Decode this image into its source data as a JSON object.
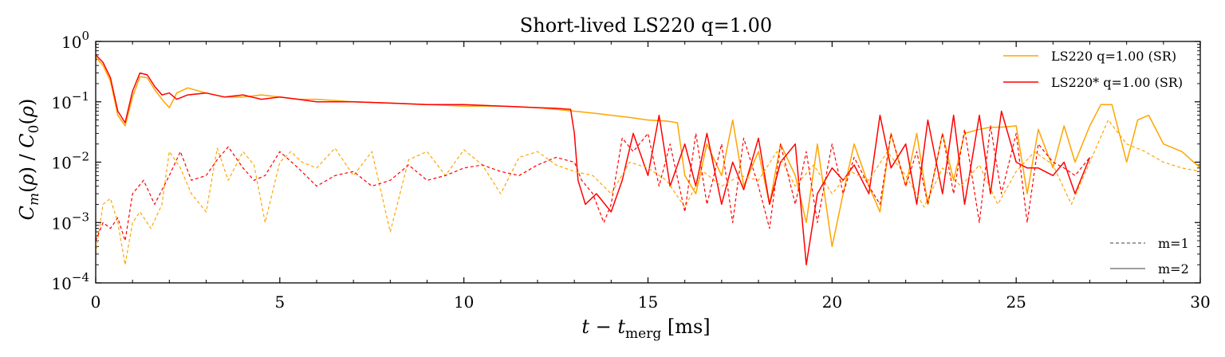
{
  "chart_data": {
    "type": "line",
    "title": "Short-lived LS220 q=1.00",
    "xlabel": "t − t_merg [ms]",
    "ylabel": "C_m(ρ) / C_0(ρ)",
    "xlim": [
      0,
      30
    ],
    "ylim": [
      0.0001,
      1
    ],
    "yscale": "log",
    "xticks": [
      0,
      5,
      10,
      15,
      20,
      25,
      30
    ],
    "yticks": [
      {
        "value": 0.0001,
        "exp": "−4"
      },
      {
        "value": 0.001,
        "exp": "−3"
      },
      {
        "value": 0.01,
        "exp": "−2"
      },
      {
        "value": 0.1,
        "exp": "−1"
      },
      {
        "value": 1,
        "exp": "0"
      }
    ],
    "legend_placement": "top-right",
    "legend_style_placement": "bottom-right",
    "grid": false,
    "series": [
      {
        "name": "LS220 q=1.00 (SR)",
        "color": "#ffa500",
        "m": 2,
        "x": [
          0,
          0.2,
          0.4,
          0.6,
          0.8,
          1.0,
          1.2,
          1.4,
          1.6,
          1.8,
          2.0,
          2.2,
          2.5,
          3.0,
          3.5,
          4.0,
          4.5,
          5.0,
          5.5,
          6.0,
          7.0,
          8.0,
          9.0,
          10.0,
          11.0,
          12.0,
          12.5,
          13.0,
          13.5,
          14.0,
          14.5,
          15.0,
          15.5,
          15.8,
          16.0,
          16.3,
          16.6,
          17.0,
          17.3,
          17.6,
          18.0,
          18.3,
          18.6,
          19.0,
          19.3,
          19.6,
          20.0,
          20.3,
          20.6,
          21.0,
          21.3,
          21.6,
          22.0,
          22.3,
          22.6,
          23.0,
          23.3,
          23.6,
          24.0,
          24.3,
          24.6,
          25.0,
          25.3,
          25.6,
          26.0,
          26.3,
          26.6,
          27.0,
          27.3,
          27.6,
          28.0,
          28.3,
          28.6,
          29.0,
          29.5,
          30.0
        ],
        "y": [
          0.55,
          0.4,
          0.22,
          0.06,
          0.04,
          0.12,
          0.26,
          0.25,
          0.16,
          0.11,
          0.08,
          0.14,
          0.17,
          0.14,
          0.12,
          0.12,
          0.13,
          0.12,
          0.11,
          0.11,
          0.1,
          0.095,
          0.09,
          0.085,
          0.085,
          0.08,
          0.075,
          0.07,
          0.065,
          0.06,
          0.055,
          0.05,
          0.048,
          0.045,
          0.006,
          0.003,
          0.02,
          0.006,
          0.05,
          0.004,
          0.015,
          0.002,
          0.02,
          0.006,
          0.001,
          0.02,
          0.0004,
          0.003,
          0.02,
          0.004,
          0.0015,
          0.03,
          0.004,
          0.03,
          0.002,
          0.03,
          0.005,
          0.03,
          0.035,
          0.038,
          0.038,
          0.04,
          0.003,
          0.035,
          0.008,
          0.04,
          0.01,
          0.04,
          0.09,
          0.09,
          0.01,
          0.05,
          0.06,
          0.02,
          0.015,
          0.008
        ]
      },
      {
        "name": "LS220* q=1.00 (SR)",
        "color": "#ff0000",
        "m": 2,
        "x": [
          0,
          0.2,
          0.4,
          0.6,
          0.8,
          1.0,
          1.2,
          1.4,
          1.6,
          1.8,
          2.0,
          2.2,
          2.5,
          3.0,
          3.5,
          4.0,
          4.5,
          5.0,
          5.5,
          6.0,
          7.0,
          8.0,
          9.0,
          10.0,
          11.0,
          12.0,
          12.5,
          12.9,
          13.0,
          13.1,
          13.3,
          13.6,
          14.0,
          14.3,
          14.6,
          15.0,
          15.3,
          15.6,
          16.0,
          16.3,
          16.6,
          17.0,
          17.3,
          17.6,
          18.0,
          18.3,
          18.6,
          19.0,
          19.3,
          19.6,
          20.0,
          20.3,
          20.6,
          21.0,
          21.3,
          21.6,
          22.0,
          22.3,
          22.6,
          23.0,
          23.3,
          23.6,
          24.0,
          24.3,
          24.6,
          25.0,
          25.3,
          25.6,
          26.0,
          26.3,
          26.6,
          27.0
        ],
        "y": [
          0.6,
          0.45,
          0.25,
          0.07,
          0.045,
          0.15,
          0.3,
          0.28,
          0.18,
          0.13,
          0.14,
          0.11,
          0.13,
          0.14,
          0.12,
          0.13,
          0.11,
          0.12,
          0.11,
          0.1,
          0.1,
          0.095,
          0.09,
          0.09,
          0.085,
          0.08,
          0.078,
          0.075,
          0.03,
          0.005,
          0.002,
          0.003,
          0.0015,
          0.005,
          0.03,
          0.006,
          0.06,
          0.004,
          0.02,
          0.004,
          0.03,
          0.002,
          0.01,
          0.0035,
          0.025,
          0.002,
          0.01,
          0.02,
          0.0002,
          0.003,
          0.008,
          0.005,
          0.009,
          0.003,
          0.06,
          0.008,
          0.02,
          0.002,
          0.05,
          0.003,
          0.06,
          0.002,
          0.06,
          0.003,
          0.07,
          0.01,
          0.008,
          0.008,
          0.006,
          0.01,
          0.003,
          0.012
        ]
      },
      {
        "name": "LS220 q=1.00 (SR)",
        "color": "#ffa500",
        "m": 1,
        "x": [
          0,
          0.2,
          0.4,
          0.6,
          0.8,
          1.0,
          1.2,
          1.5,
          1.8,
          2.0,
          2.3,
          2.6,
          3.0,
          3.3,
          3.6,
          4.0,
          4.3,
          4.6,
          5.0,
          5.3,
          5.6,
          6.0,
          6.5,
          7.0,
          7.5,
          8.0,
          8.5,
          9.0,
          9.5,
          10.0,
          10.5,
          11.0,
          11.5,
          12.0,
          12.5,
          13.0,
          13.5,
          14.0,
          14.5,
          15.0,
          15.5,
          16.0,
          16.5,
          17.0,
          17.5,
          18.0,
          18.5,
          19.0,
          19.5,
          20.0,
          20.5,
          21.0,
          21.5,
          22.0,
          22.5,
          23.0,
          23.5,
          24.0,
          24.5,
          25.0,
          25.5,
          26.0,
          26.5,
          27.0,
          27.5,
          28.0,
          28.5,
          29.0,
          29.5,
          30.0
        ],
        "y": [
          0.0003,
          0.002,
          0.0025,
          0.001,
          0.0002,
          0.001,
          0.0015,
          0.0008,
          0.002,
          0.015,
          0.008,
          0.003,
          0.0015,
          0.017,
          0.005,
          0.015,
          0.009,
          0.001,
          0.01,
          0.015,
          0.01,
          0.008,
          0.017,
          0.006,
          0.015,
          0.0007,
          0.011,
          0.015,
          0.006,
          0.016,
          0.009,
          0.003,
          0.012,
          0.015,
          0.009,
          0.007,
          0.006,
          0.003,
          0.01,
          0.008,
          0.005,
          0.0018,
          0.007,
          0.004,
          0.006,
          0.005,
          0.015,
          0.004,
          0.009,
          0.003,
          0.007,
          0.005,
          0.015,
          0.006,
          0.0018,
          0.008,
          0.004,
          0.009,
          0.002,
          0.007,
          0.015,
          0.009,
          0.002,
          0.01,
          0.05,
          0.02,
          0.015,
          0.01,
          0.008,
          0.007
        ]
      },
      {
        "name": "LS220* q=1.00 (SR)",
        "color": "#ff0000",
        "m": 1,
        "x": [
          0,
          0.2,
          0.4,
          0.6,
          0.8,
          1.0,
          1.3,
          1.6,
          2.0,
          2.3,
          2.6,
          3.0,
          3.3,
          3.6,
          4.0,
          4.3,
          4.6,
          5.0,
          5.5,
          6.0,
          6.5,
          7.0,
          7.5,
          8.0,
          8.5,
          9.0,
          9.5,
          10.0,
          10.5,
          11.0,
          11.5,
          12.0,
          12.5,
          13.0,
          13.2,
          13.5,
          13.8,
          14.0,
          14.3,
          14.6,
          15.0,
          15.3,
          15.6,
          16.0,
          16.3,
          16.6,
          17.0,
          17.3,
          17.6,
          18.0,
          18.3,
          18.6,
          19.0,
          19.3,
          19.6,
          20.0,
          20.3,
          20.6,
          21.0,
          21.3,
          21.6,
          22.0,
          22.3,
          22.6,
          23.0,
          23.3,
          23.6,
          24.0,
          24.3,
          24.6,
          25.0,
          25.3,
          25.6,
          26.0,
          26.3,
          26.6,
          27.0
        ],
        "y": [
          0.0005,
          0.001,
          0.0008,
          0.0012,
          0.0005,
          0.003,
          0.005,
          0.002,
          0.006,
          0.015,
          0.005,
          0.006,
          0.011,
          0.018,
          0.008,
          0.005,
          0.006,
          0.015,
          0.008,
          0.004,
          0.006,
          0.007,
          0.004,
          0.005,
          0.009,
          0.005,
          0.006,
          0.008,
          0.009,
          0.007,
          0.006,
          0.009,
          0.012,
          0.01,
          0.005,
          0.003,
          0.001,
          0.002,
          0.025,
          0.015,
          0.03,
          0.004,
          0.02,
          0.0015,
          0.03,
          0.002,
          0.02,
          0.001,
          0.025,
          0.004,
          0.0008,
          0.02,
          0.002,
          0.015,
          0.001,
          0.02,
          0.003,
          0.012,
          0.004,
          0.002,
          0.03,
          0.004,
          0.015,
          0.002,
          0.03,
          0.003,
          0.035,
          0.001,
          0.04,
          0.003,
          0.03,
          0.001,
          0.02,
          0.01,
          0.008,
          0.006,
          0.012
        ]
      }
    ],
    "legend": [
      {
        "label": "LS220 q=1.00 (SR)",
        "color": "#ffa500",
        "style": "solid"
      },
      {
        "label": "LS220* q=1.00 (SR)",
        "color": "#ff0000",
        "style": "solid"
      }
    ],
    "style_legend": [
      {
        "label": "m=1",
        "color": "#666666",
        "style": "dashed"
      },
      {
        "label": "m=2",
        "color": "#666666",
        "style": "solid"
      }
    ]
  }
}
